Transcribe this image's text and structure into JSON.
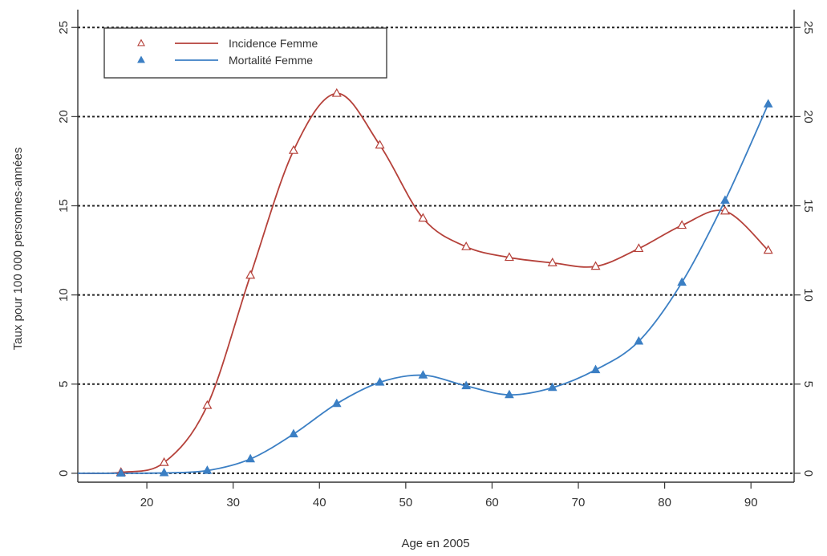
{
  "chart_data": {
    "type": "line",
    "xlabel": "Age en 2005",
    "ylabel": "Taux pour 100 000 personnes-années",
    "xlim": [
      12,
      95
    ],
    "ylim": [
      -0.5,
      26
    ],
    "x_ticks": [
      "20",
      "30",
      "40",
      "50",
      "60",
      "70",
      "80",
      "90"
    ],
    "y_ticks": [
      "0",
      "5",
      "10",
      "15",
      "20",
      "25"
    ],
    "right_axis_ticks": [
      "0",
      "5",
      "10",
      "15",
      "20",
      "25"
    ],
    "grid": "horizontal dotted at y ticks",
    "legend_position": "top-left",
    "series": [
      {
        "name": "Incidence Femme",
        "marker": "open-triangle",
        "color": "#b5413a",
        "x": [
          12,
          17,
          22,
          27,
          32,
          37,
          42,
          47,
          52,
          57,
          62,
          67,
          72,
          77,
          82,
          87,
          92
        ],
        "y": [
          0.0,
          0.05,
          0.6,
          3.8,
          11.1,
          18.1,
          21.3,
          18.4,
          14.3,
          12.7,
          12.1,
          11.8,
          11.6,
          12.6,
          13.9,
          14.7,
          12.5
        ]
      },
      {
        "name": "Mortalité Femme",
        "marker": "filled-triangle",
        "color": "#3b7fc4",
        "x": [
          12,
          17,
          22,
          27,
          32,
          37,
          42,
          47,
          52,
          57,
          62,
          67,
          72,
          77,
          82,
          87,
          92
        ],
        "y": [
          0.0,
          0.0,
          0.02,
          0.15,
          0.8,
          2.2,
          3.9,
          5.1,
          5.5,
          4.9,
          4.4,
          4.8,
          5.8,
          7.4,
          10.7,
          15.3,
          20.7
        ]
      }
    ]
  }
}
